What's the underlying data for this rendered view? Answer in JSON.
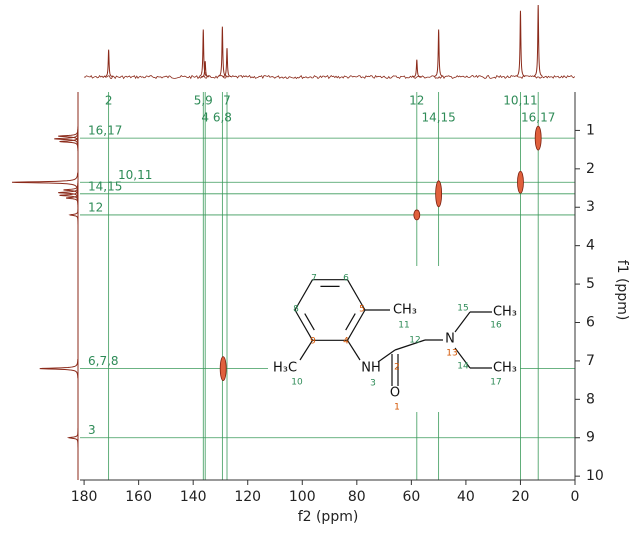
{
  "chart_data": {
    "type": "nmr2d",
    "xlabel": "f2 (ppm)",
    "ylabel": "f1 (ppm)",
    "xlim": [
      181.5,
      0
    ],
    "ylim": [
      0,
      10.1
    ],
    "xticks": [
      180,
      160,
      140,
      120,
      100,
      80,
      60,
      40,
      20,
      0
    ],
    "yticks": [
      1,
      2,
      3,
      4,
      5,
      6,
      7,
      8,
      9,
      10
    ],
    "spectrum_color": "#8b2a1a",
    "peak_color": "#e0603c",
    "guide_color": "#3a9a5a",
    "cross_peaks": {
      "x": [
        13.5,
        20,
        50,
        58,
        129
      ],
      "y": [
        1.2,
        2.35,
        2.65,
        3.2,
        7.2
      ]
    },
    "f2_projection": {
      "x": [
        171,
        136.3,
        135.6,
        129.3,
        127.6,
        58,
        50,
        20,
        13.5
      ],
      "values": [
        38,
        66,
        22,
        70,
        40,
        24,
        66,
        92,
        100
      ]
    },
    "f1_projection": {
      "x": [
        1.15,
        1.22,
        1.29,
        2.35,
        2.55,
        2.62,
        2.69,
        2.76,
        3.2,
        7.2,
        9.0
      ],
      "values": [
        30,
        36,
        28,
        100,
        22,
        30,
        28,
        18,
        12,
        58,
        14
      ]
    },
    "column_labels": {
      "upper": {
        "labels": [
          "2",
          "5,9",
          "7",
          "12",
          "10,11"
        ],
        "x": [
          171,
          136.3,
          127.6,
          58,
          20
        ]
      },
      "lower": {
        "labels": [
          "4",
          "6,8",
          "14,15",
          "16,17"
        ],
        "x": [
          135.6,
          129.3,
          50,
          13.5
        ]
      }
    },
    "row_labels": {
      "labels": [
        "16,17",
        "10,11",
        "14,15",
        "12",
        "6,7,8",
        "3"
      ],
      "y": [
        1.2,
        2.35,
        2.65,
        3.2,
        7.2,
        9.0
      ]
    },
    "structure": {
      "atoms": [
        "CH₃",
        "H₃C",
        "NH",
        "O",
        "N",
        "CH₃",
        "CH₃"
      ],
      "numbers": [
        "7",
        "6",
        "8",
        "5",
        "9",
        "4",
        "11",
        "10",
        "3",
        "2",
        "1",
        "12",
        "13",
        "15",
        "16",
        "14",
        "17"
      ],
      "number_colors": [
        "#2e8b57",
        "#2e8b57",
        "#2e8b57",
        "#d35400",
        "#d35400",
        "#d35400",
        "#2e8b57",
        "#2e8b57",
        "#2e8b57",
        "#d35400",
        "#d35400",
        "#2e8b57",
        "#d35400",
        "#2e8b57",
        "#2e8b57",
        "#2e8b57",
        "#2e8b57"
      ]
    }
  }
}
